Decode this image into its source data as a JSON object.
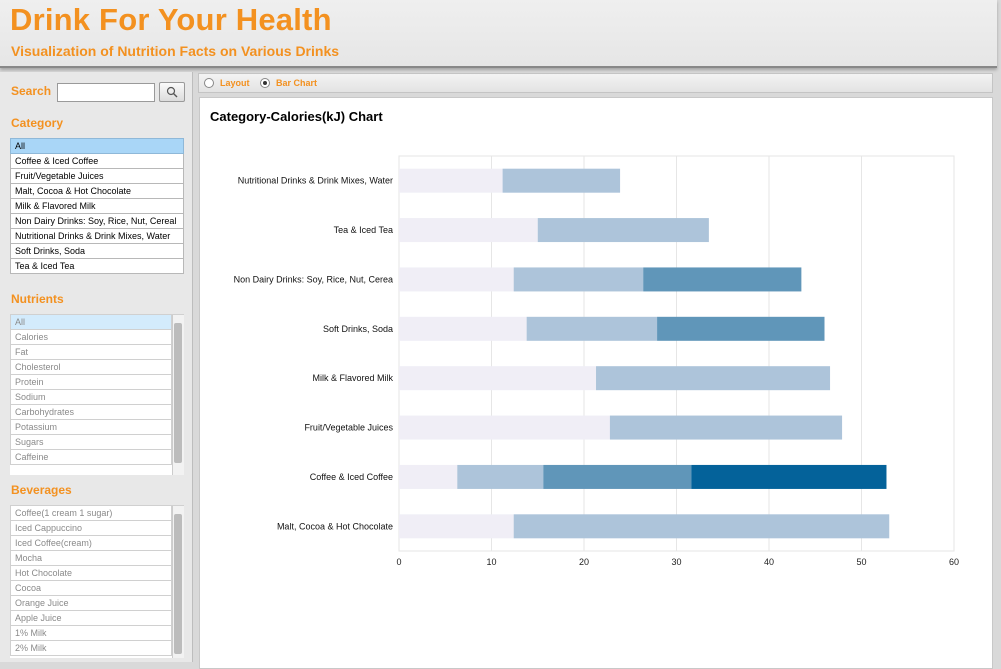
{
  "header": {
    "title": "Drink For Your Health",
    "subtitle": "Visualization of Nutrition Facts on Various Drinks"
  },
  "search": {
    "label": "Search",
    "value": "",
    "placeholder": ""
  },
  "category": {
    "label": "Category",
    "items": [
      "All",
      "Coffee & Iced Coffee",
      "Fruit/Vegetable Juices",
      "Malt, Cocoa & Hot Chocolate",
      "Milk & Flavored Milk",
      "Non Dairy Drinks: Soy, Rice, Nut, Cereal",
      "Nutritional Drinks & Drink Mixes, Water",
      "Soft Drinks, Soda",
      "Tea & Iced Tea"
    ],
    "selected": "All"
  },
  "nutrients": {
    "label": "Nutrients",
    "items": [
      "All",
      "Calories",
      "Fat",
      "Cholesterol",
      "Protein",
      "Sodium",
      "Carbohydrates",
      "Potassium",
      "Sugars",
      "Caffeine"
    ],
    "selected": "All"
  },
  "beverages": {
    "label": "Beverages",
    "items": [
      "Coffee(1 cream 1 sugar)",
      "Iced Cappuccino",
      "Iced Coffee(cream)",
      "Mocha",
      "Hot Chocolate",
      "Cocoa",
      "Orange Juice",
      "Apple Juice",
      "1% Milk",
      "2% Milk"
    ]
  },
  "tabs": {
    "layout": "Layout",
    "bar_chart": "Bar Chart",
    "active": "bar_chart"
  },
  "colors": {
    "accent": "#f39120",
    "selected": "#a9d6f7",
    "seg1": "#f0eef6",
    "seg2": "#adc4da",
    "seg3": "#6096b9",
    "seg4": "#04629a"
  },
  "chart_data": {
    "type": "bar",
    "orientation": "horizontal",
    "stacked": true,
    "title": "Category-Calories(kJ) Chart",
    "categories": [
      "Nutritional Drinks & Drink Mixes, Water",
      "Tea & Iced Tea",
      "Non Dairy Drinks: Soy, Rice, Nut, Cerea",
      "Soft Drinks, Soda",
      "Milk & Flavored Milk",
      "Fruit/Vegetable Juices",
      "Coffee & Iced Coffee",
      "Malt, Cocoa & Hot Chocolate"
    ],
    "segments": [
      [
        11.2,
        23.9
      ],
      [
        15.0,
        33.5
      ],
      [
        12.4,
        26.4,
        43.5
      ],
      [
        13.8,
        27.9,
        46.0
      ],
      [
        21.3,
        46.6
      ],
      [
        22.8,
        47.9
      ],
      [
        6.3,
        15.6,
        31.6,
        52.7
      ],
      [
        12.4,
        53.0
      ]
    ],
    "xlim": [
      0,
      60
    ],
    "xticks": [
      0,
      10,
      20,
      30,
      40,
      50,
      60
    ],
    "grid": true,
    "xlabel": "",
    "ylabel": ""
  }
}
